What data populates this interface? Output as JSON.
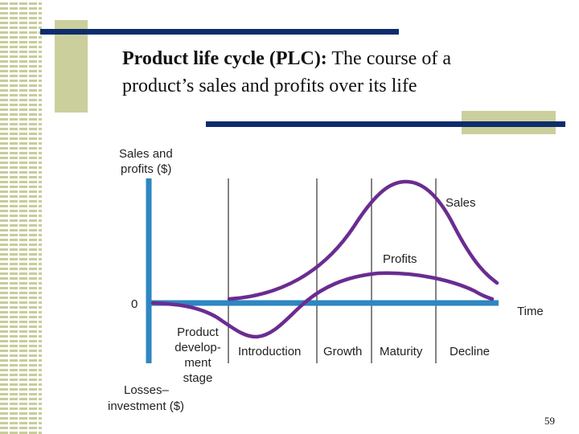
{
  "title": {
    "term": "Product life cycle (PLC):",
    "line1_rest": " The course of a",
    "line2": "product’s sales and profits over its life"
  },
  "page_number": "59",
  "colors": {
    "accent_navy": "#0d2d6c",
    "olive": "#cbcf9c",
    "axis_blue": "#2e86c1",
    "curve_purple": "#6a2c91"
  },
  "diagram": {
    "y_axis_label_top": [
      "Sales and",
      "profits ($)"
    ],
    "zero_label": "0",
    "time_label": "Time",
    "y_axis_label_bottom": [
      "Losses–",
      "investment ($)"
    ],
    "development_label": [
      "Product",
      "develop-",
      "ment",
      "stage"
    ],
    "stages": [
      "Introduction",
      "Growth",
      "Maturity",
      "Decline"
    ],
    "curves": {
      "sales": "Sales",
      "profits": "Profits"
    }
  }
}
